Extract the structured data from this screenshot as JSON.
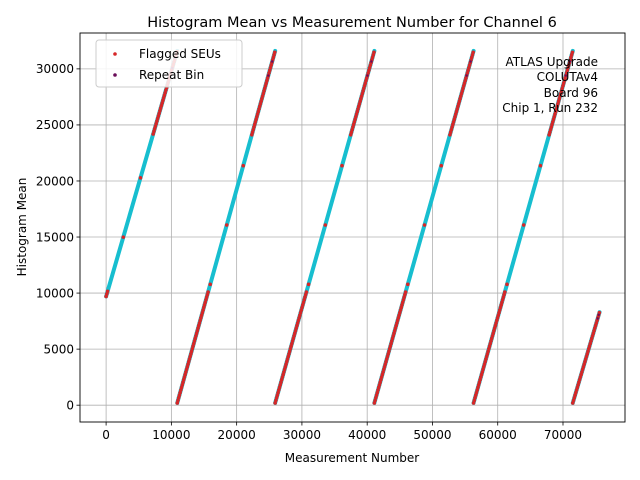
{
  "chart_data": {
    "type": "scatter",
    "title": "Histogram Mean vs Measurement Number for Channel 6",
    "xlabel": "Measurement Number",
    "ylabel": "Histogram Mean",
    "xlim": [
      -4000,
      79500
    ],
    "ylim": [
      -1500,
      33200
    ],
    "xticks": [
      0,
      10000,
      20000,
      30000,
      40000,
      50000,
      60000,
      70000
    ],
    "yticks": [
      0,
      5000,
      10000,
      15000,
      20000,
      25000,
      30000
    ],
    "grid": true,
    "legend_position": "top-left",
    "ramps": [
      {
        "x_start": 0,
        "y_start": 9700,
        "x_end": 10900,
        "y_end": 31600
      },
      {
        "x_start": 10900,
        "y_start": 200,
        "x_end": 25900,
        "y_end": 31600
      },
      {
        "x_start": 25900,
        "y_start": 200,
        "x_end": 41100,
        "y_end": 31600
      },
      {
        "x_start": 41100,
        "y_start": 200,
        "x_end": 56300,
        "y_end": 31600
      },
      {
        "x_start": 56300,
        "y_start": 200,
        "x_end": 71500,
        "y_end": 31600
      },
      {
        "x_start": 71500,
        "y_start": 200,
        "x_end": 75600,
        "y_end": 8300
      }
    ],
    "series": [
      {
        "name": "",
        "color": "#17becf",
        "marker": "line"
      },
      {
        "name": "Flagged SEUs",
        "color": "#d62728",
        "marker": "dot"
      },
      {
        "name": "Repeat Bin",
        "color": "#6a0d59",
        "marker": "dot"
      }
    ],
    "annotation": [
      "ATLAS Upgrade",
      "COLUTAv4",
      "Board 96",
      "Chip 1, Run 232"
    ]
  }
}
